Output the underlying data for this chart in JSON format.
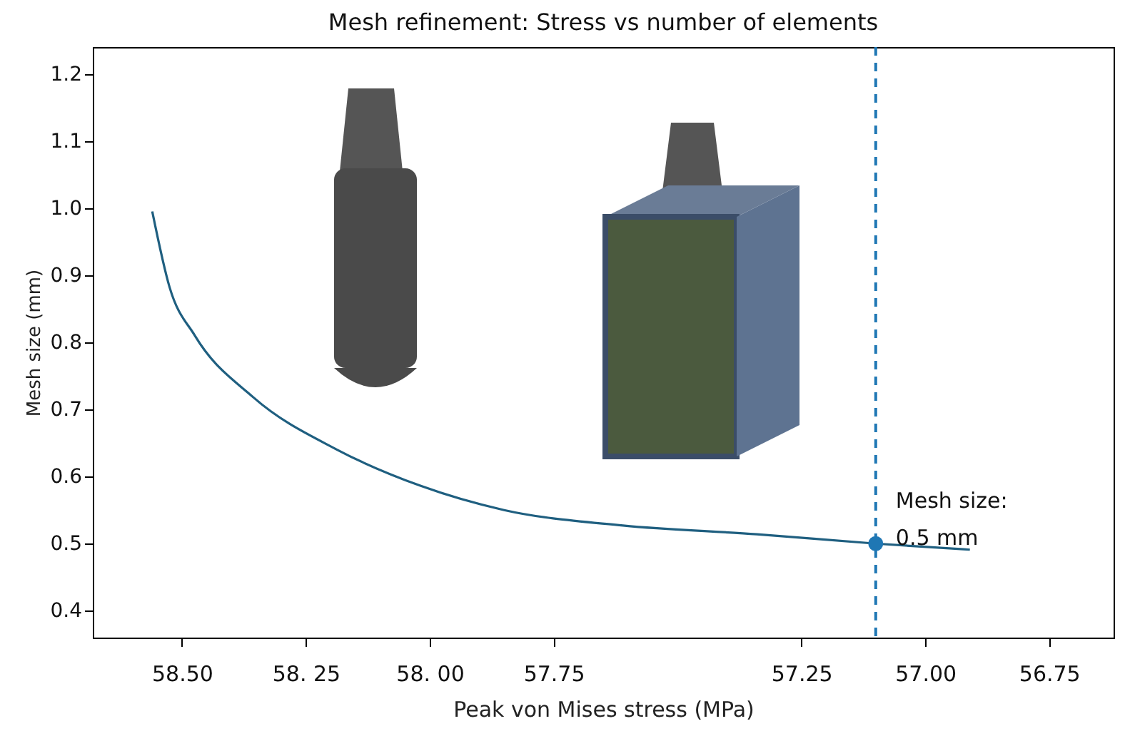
{
  "chart_data": {
    "type": "line",
    "title": "Mesh refinement:  Stress vs number of elements",
    "xlabel": "Peak von Mises stress (MPa)",
    "ylabel": "Mesh size (mm)",
    "xlim": [
      58.68,
      56.62
    ],
    "ylim": [
      0.36,
      1.24
    ],
    "xticks": [
      {
        "value": 58.5,
        "label": "58.50"
      },
      {
        "value": 58.25,
        "label": "58. 25"
      },
      {
        "value": 58.0,
        "label": "58. 00"
      },
      {
        "value": 57.75,
        "label": "57.75"
      },
      {
        "value": 57.25,
        "label": "57.25"
      },
      {
        "value": 57.0,
        "label": "57.00"
      },
      {
        "value": 56.75,
        "label": "56.75"
      }
    ],
    "yticks": [
      0.4,
      0.5,
      0.6,
      0.7,
      0.8,
      0.9,
      {
        "value": 1.0,
        "label": "1.0"
      },
      1.1,
      1.2
    ],
    "grid": false,
    "series": [
      {
        "color": "#1f5f80",
        "x": [
          58.56,
          58.525,
          58.474,
          58.356,
          58.187,
          58.018,
          57.85,
          57.61,
          57.34,
          57.1,
          56.91
        ],
        "values": [
          0.995,
          0.882,
          0.81,
          0.718,
          0.64,
          0.586,
          0.55,
          0.527,
          0.514,
          0.5,
          0.491
        ]
      },
      {
        "type": "scatter",
        "color": "#1f77b4",
        "marker": "circle",
        "x": [
          57.1
        ],
        "values": [
          0.5
        ]
      }
    ],
    "ref_lines": [
      {
        "axis": "x",
        "value": 57.1,
        "color": "#1f77b4",
        "line_style": "dashed"
      }
    ],
    "annotations": [
      {
        "text": "Mesh size:\n0.5 mm",
        "x": 57.1,
        "y": 0.5
      }
    ]
  }
}
